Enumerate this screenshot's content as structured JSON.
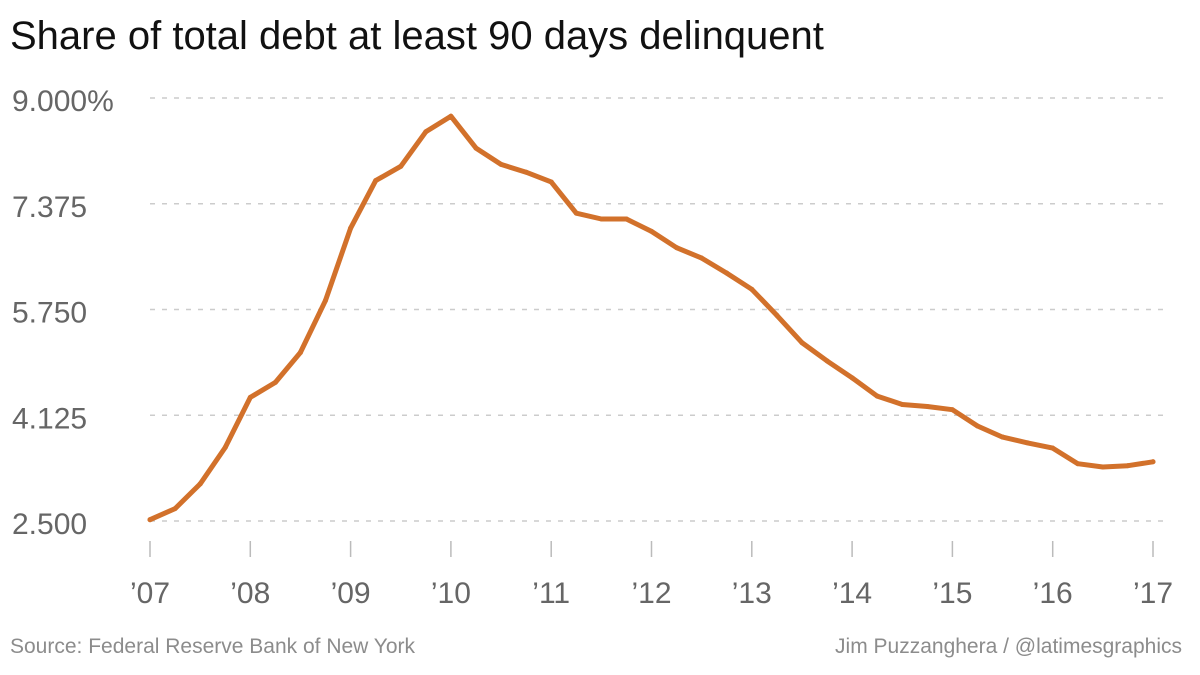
{
  "chart_data": {
    "type": "line",
    "title": "Share of total debt at least 90 days delinquent",
    "xlabel": "",
    "ylabel": "",
    "x": [
      2007.0,
      2007.25,
      2007.5,
      2007.75,
      2008.0,
      2008.25,
      2008.5,
      2008.75,
      2009.0,
      2009.25,
      2009.5,
      2009.75,
      2010.0,
      2010.25,
      2010.5,
      2010.75,
      2011.0,
      2011.25,
      2011.5,
      2011.75,
      2012.0,
      2012.25,
      2012.5,
      2012.75,
      2013.0,
      2013.25,
      2013.5,
      2013.75,
      2014.0,
      2014.25,
      2014.5,
      2014.75,
      2015.0,
      2015.25,
      2015.5,
      2015.75,
      2016.0,
      2016.25,
      2016.5,
      2016.75,
      2017.0
    ],
    "series": [
      {
        "values": [
          2.52,
          2.69,
          3.07,
          3.63,
          4.4,
          4.63,
          5.09,
          5.89,
          7.0,
          7.73,
          7.95,
          8.48,
          8.72,
          8.23,
          7.98,
          7.86,
          7.71,
          7.23,
          7.14,
          7.14,
          6.95,
          6.7,
          6.54,
          6.31,
          6.06,
          5.66,
          5.24,
          4.96,
          4.7,
          4.42,
          4.29,
          4.26,
          4.21,
          3.96,
          3.79,
          3.7,
          3.62,
          3.38,
          3.33,
          3.35,
          3.41
        ],
        "color": "#d2712b"
      }
    ],
    "ylim": [
      2.5,
      9.0
    ],
    "y_ticks": [
      "2.500",
      "4.125",
      "5.750",
      "7.375",
      "9.000%"
    ],
    "y_tick_values": [
      2.5,
      4.125,
      5.75,
      7.375,
      9.0
    ],
    "x_ticks": [
      "’07",
      "’08",
      "’09",
      "’10",
      "’11",
      "’12",
      "’13",
      "’14",
      "’15",
      "’16",
      "’17"
    ],
    "x_tick_values": [
      2007,
      2008,
      2009,
      2010,
      2011,
      2012,
      2013,
      2014,
      2015,
      2016,
      2017
    ],
    "grid": true,
    "colors": {
      "line": "#d2712b",
      "grid": "#cccccc",
      "tick_text": "#666666"
    }
  },
  "footer": {
    "source": "Source: Federal Reserve Bank of New York",
    "credit": "Jim Puzzanghera / @latimesgraphics"
  }
}
